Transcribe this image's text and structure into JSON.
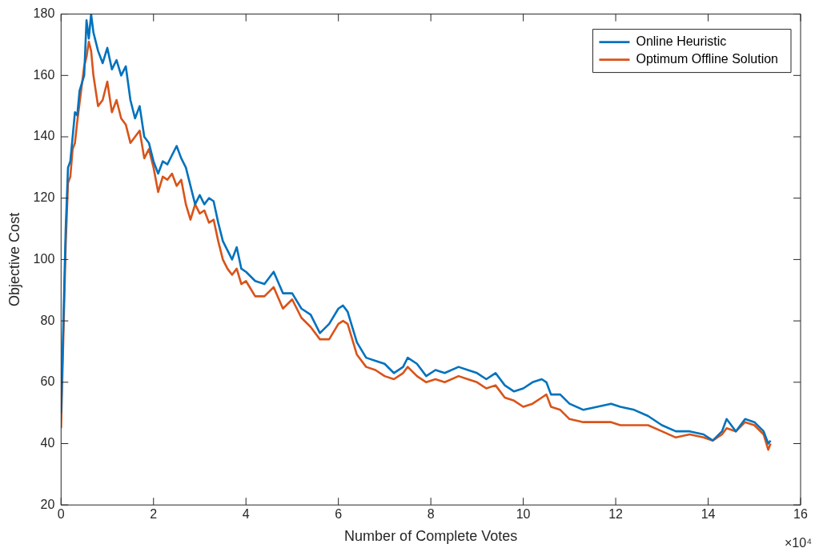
{
  "chart_data": {
    "type": "line",
    "xlabel": "Number of Complete Votes",
    "ylabel": "Objective Cost",
    "annotations": [
      "×10⁴"
    ],
    "xlim": [
      0,
      16
    ],
    "xticks": [
      0,
      2,
      4,
      6,
      8,
      10,
      12,
      14,
      16
    ],
    "ylim": [
      20,
      180
    ],
    "yticks": [
      20,
      40,
      60,
      80,
      100,
      120,
      140,
      160,
      180
    ],
    "grid": false,
    "legend": "top right",
    "marker": "none",
    "line_style": "solid",
    "x": [
      0,
      0.05,
      0.1,
      0.15,
      0.2,
      0.25,
      0.3,
      0.35,
      0.4,
      0.5,
      0.55,
      0.6,
      0.65,
      0.7,
      0.8,
      0.9,
      1.0,
      1.1,
      1.2,
      1.3,
      1.4,
      1.5,
      1.6,
      1.7,
      1.8,
      1.9,
      2.0,
      2.1,
      2.2,
      2.3,
      2.4,
      2.5,
      2.6,
      2.7,
      2.8,
      2.9,
      3.0,
      3.1,
      3.2,
      3.3,
      3.4,
      3.5,
      3.6,
      3.7,
      3.8,
      3.9,
      4.0,
      4.2,
      4.4,
      4.6,
      4.8,
      5.0,
      5.2,
      5.4,
      5.6,
      5.8,
      6.0,
      6.1,
      6.2,
      6.4,
      6.6,
      6.8,
      7.0,
      7.2,
      7.4,
      7.5,
      7.7,
      7.9,
      8.1,
      8.3,
      8.6,
      8.8,
      9.0,
      9.2,
      9.4,
      9.6,
      9.8,
      10.0,
      10.2,
      10.4,
      10.5,
      10.6,
      10.8,
      11.0,
      11.3,
      11.6,
      11.9,
      12.1,
      12.4,
      12.7,
      13.0,
      13.3,
      13.6,
      13.9,
      14.1,
      14.3,
      14.4,
      14.6,
      14.8,
      15.0,
      15.2,
      15.3,
      15.35
    ],
    "series": [
      {
        "name": "Online Heuristic",
        "color": "#0072bd",
        "values": [
          50,
          80,
          110,
          130,
          132,
          140,
          148,
          147,
          155,
          160,
          178,
          172,
          180,
          174,
          168,
          164,
          169,
          162,
          165,
          160,
          163,
          152,
          146,
          150,
          140,
          138,
          132,
          128,
          132,
          131,
          134,
          137,
          133,
          130,
          124,
          118,
          121,
          118,
          120,
          119,
          112,
          106,
          103,
          100,
          104,
          97,
          96,
          93,
          92,
          96,
          89,
          89,
          84,
          82,
          76,
          79,
          84,
          85,
          83,
          73,
          68,
          67,
          66,
          63,
          65,
          68,
          66,
          62,
          64,
          63,
          65,
          64,
          63,
          61,
          63,
          59,
          57,
          58,
          60,
          61,
          60,
          56,
          56,
          53,
          51,
          52,
          53,
          52,
          51,
          49,
          46,
          44,
          44,
          43,
          41,
          44,
          48,
          44,
          48,
          47,
          44,
          40,
          41
        ]
      },
      {
        "name": "Optimum Offline Solution",
        "color": "#d95319",
        "values": [
          45,
          75,
          105,
          125,
          127,
          136,
          138,
          145,
          151,
          163,
          166,
          171,
          168,
          160,
          150,
          152,
          158,
          148,
          152,
          146,
          144,
          138,
          140,
          142,
          133,
          136,
          130,
          122,
          127,
          126,
          128,
          124,
          126,
          118,
          113,
          118,
          115,
          116,
          112,
          113,
          106,
          100,
          97,
          95,
          97,
          92,
          93,
          88,
          88,
          91,
          84,
          87,
          81,
          78,
          74,
          74,
          79,
          80,
          79,
          69,
          65,
          64,
          62,
          61,
          63,
          65,
          62,
          60,
          61,
          60,
          62,
          61,
          60,
          58,
          59,
          55,
          54,
          52,
          53,
          55,
          56,
          52,
          51,
          48,
          47,
          47,
          47,
          46,
          46,
          46,
          44,
          42,
          43,
          42,
          41,
          43,
          45,
          44,
          47,
          46,
          43,
          38,
          40
        ]
      }
    ]
  }
}
